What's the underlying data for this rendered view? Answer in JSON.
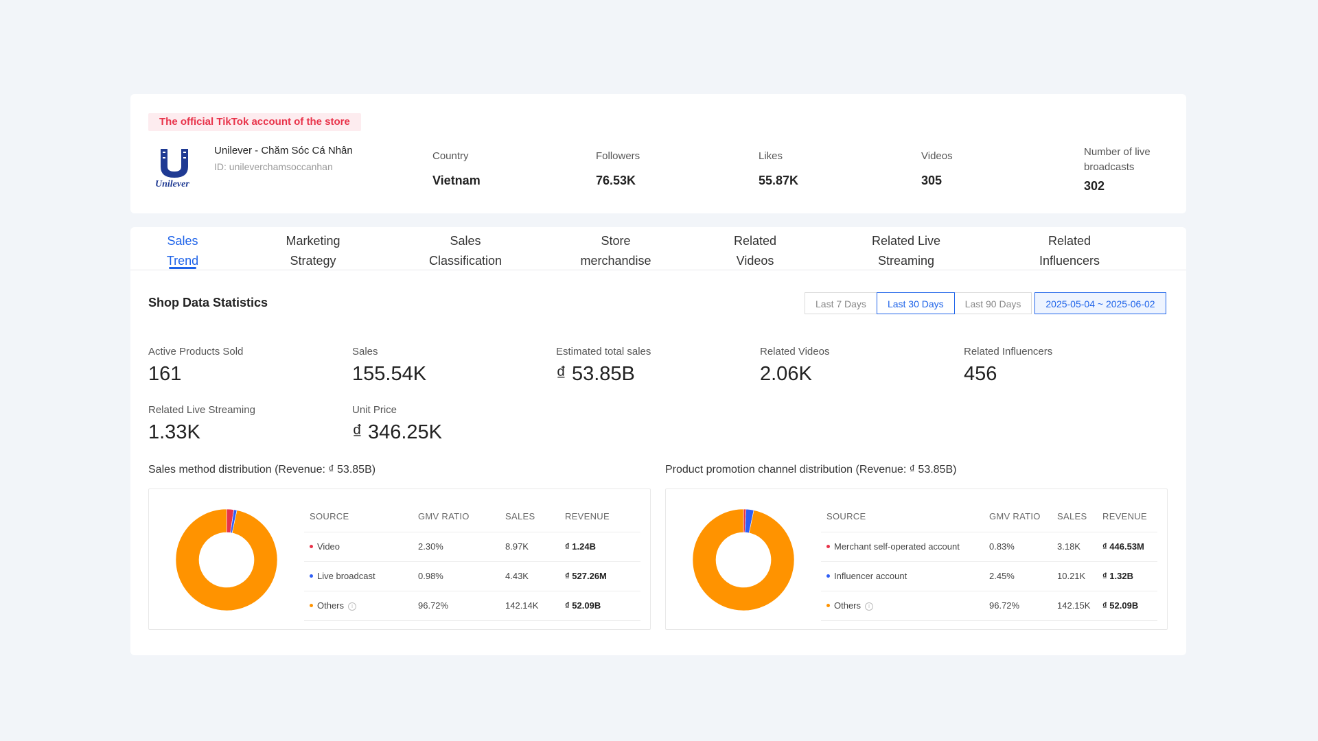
{
  "profile": {
    "official_badge": "The official TikTok account of the store",
    "logo_text": "Unilever",
    "store_name": "Unilever - Chăm Sóc Cá Nhân",
    "store_id": "ID: unileverchamsoccanhan",
    "stats": [
      {
        "label": "Country",
        "value": "Vietnam"
      },
      {
        "label": "Followers",
        "value": "76.53K"
      },
      {
        "label": "Likes",
        "value": "55.87K"
      },
      {
        "label": "Videos",
        "value": "305"
      },
      {
        "label": "Number of live broadcasts",
        "value": "302"
      }
    ]
  },
  "tabs": [
    {
      "line1": "Sales",
      "line2": "Trend"
    },
    {
      "line1": "Marketing",
      "line2": "Strategy"
    },
    {
      "line1": "Sales",
      "line2": "Classification"
    },
    {
      "line1": "Store",
      "line2": "merchandise"
    },
    {
      "line1": "Related",
      "line2": "Videos"
    },
    {
      "line1": "Related Live",
      "line2": "Streaming"
    },
    {
      "line1": "Related",
      "line2": "Influencers"
    }
  ],
  "active_tab": 0,
  "section_title": "Shop Data Statistics",
  "date_ranges": [
    "Last 7 Days",
    "Last 30 Days",
    "Last 90 Days"
  ],
  "active_range": 1,
  "date_picker": "2025-05-04 ~ 2025-06-02",
  "metrics": [
    {
      "label": "Active Products Sold",
      "value": "161"
    },
    {
      "label": "Sales",
      "value": "155.54K"
    },
    {
      "label": "Estimated total sales",
      "value": "₫ 53.85B"
    },
    {
      "label": "Related Videos",
      "value": "2.06K"
    },
    {
      "label": "Related Influencers",
      "value": "456"
    },
    {
      "label": "Related Live Streaming",
      "value": "1.33K"
    },
    {
      "label": "Unit Price",
      "value": "₫ 346.25K"
    }
  ],
  "colors": {
    "accent": "#1e63e9",
    "red": "#e8334a",
    "blue": "#2f5ef5",
    "orange": "#ff9300"
  },
  "distributions": [
    {
      "title": "Sales method distribution (Revenue: ₫ 53.85B)",
      "headers": [
        "SOURCE",
        "GMV RATIO",
        "SALES",
        "REVENUE"
      ],
      "rows": [
        {
          "source": "Video",
          "ratio": "2.30%",
          "sales": "8.97K",
          "revenue": "₫ 1.24B",
          "color": "#e8334a",
          "info": false
        },
        {
          "source": "Live broadcast",
          "ratio": "0.98%",
          "sales": "4.43K",
          "revenue": "₫ 527.26M",
          "color": "#2f5ef5",
          "info": false
        },
        {
          "source": "Others",
          "ratio": "96.72%",
          "sales": "142.14K",
          "revenue": "₫ 52.09B",
          "color": "#ff9300",
          "info": true
        }
      ],
      "shares": [
        2.3,
        0.98,
        96.72
      ]
    },
    {
      "title": "Product promotion channel distribution (Revenue: ₫ 53.85B)",
      "headers": [
        "SOURCE",
        "GMV RATIO",
        "SALES",
        "REVENUE"
      ],
      "rows": [
        {
          "source": "Merchant self-operated account",
          "ratio": "0.83%",
          "sales": "3.18K",
          "revenue": "₫ 446.53M",
          "color": "#e8334a",
          "info": false
        },
        {
          "source": "Influencer account",
          "ratio": "2.45%",
          "sales": "10.21K",
          "revenue": "₫ 1.32B",
          "color": "#2f5ef5",
          "info": false
        },
        {
          "source": "Others",
          "ratio": "96.72%",
          "sales": "142.15K",
          "revenue": "₫ 52.09B",
          "color": "#ff9300",
          "info": true
        }
      ],
      "shares": [
        0.83,
        2.45,
        96.72
      ]
    }
  ]
}
